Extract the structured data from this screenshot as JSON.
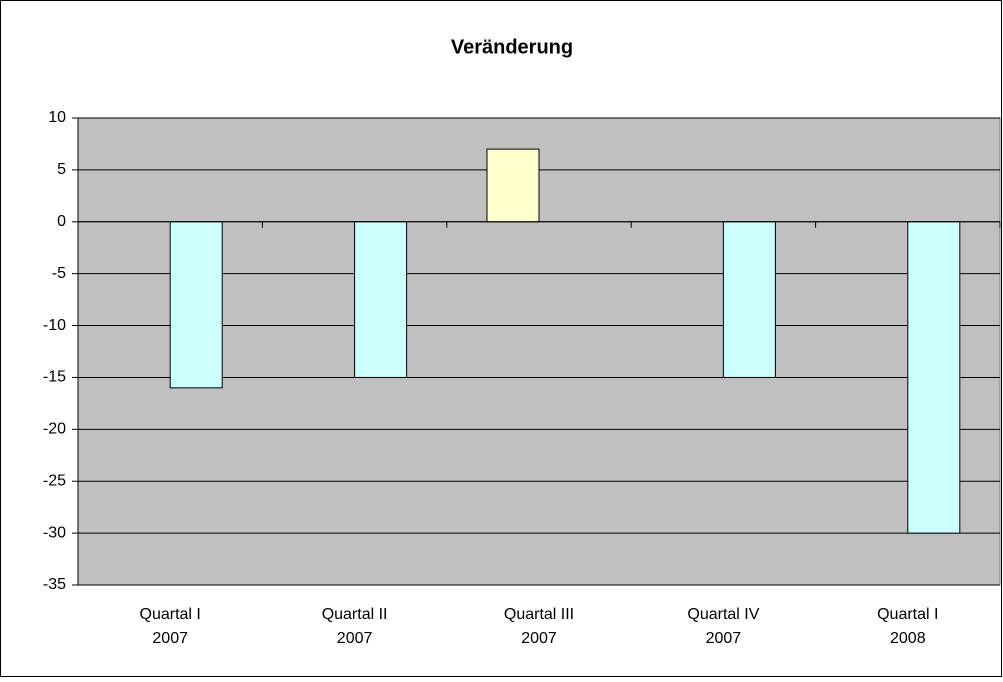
{
  "chart_data": {
    "type": "bar",
    "title": "Veränderung",
    "categories": [
      [
        "Quartal I",
        "2007"
      ],
      [
        "Quartal II",
        "2007"
      ],
      [
        "Quartal III",
        "2007"
      ],
      [
        "Quartal IV",
        "2007"
      ],
      [
        "Quartal I",
        "2008"
      ]
    ],
    "series": [
      {
        "color": "#ffffcc",
        "values": [
          null,
          null,
          7,
          null,
          null
        ]
      },
      {
        "color": "#ccffff",
        "values": [
          -16,
          -15,
          null,
          -15,
          -30
        ]
      }
    ],
    "ylim": [
      -35,
      10
    ],
    "yticks": [
      -35,
      -30,
      -25,
      -20,
      -15,
      -10,
      -5,
      0,
      5,
      10
    ],
    "grid": true,
    "plot_background": "#c0c0c0"
  }
}
